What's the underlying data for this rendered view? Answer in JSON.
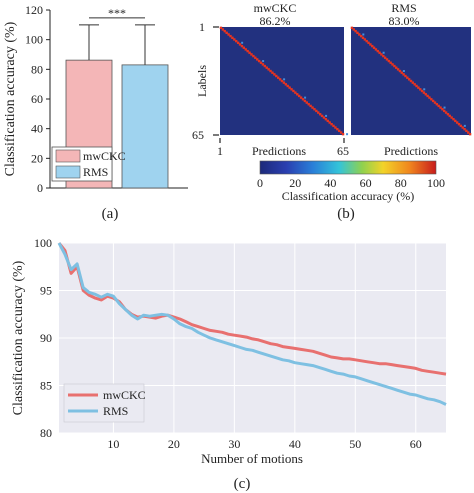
{
  "colors": {
    "mwckc_fill": "#f4b6b7",
    "rms_fill": "#9fd3ef",
    "mwckc_line": "#e8706f",
    "rms_line": "#7ec0e2",
    "heatmap_bg": "#22317f",
    "heatmap_diag": "#e8331e"
  },
  "panels": {
    "a_label": "(a)",
    "b_label": "(b)",
    "c_label": "(c)"
  },
  "chart_data": [
    {
      "type": "bar",
      "panel": "a",
      "categories": [
        "mwCKC",
        "RMS"
      ],
      "values": [
        86.2,
        83.0
      ],
      "error_upper": [
        110,
        110
      ],
      "ylabel": "Classification accuracy (%)",
      "ylim": [
        0,
        120
      ],
      "yticks": [
        "0",
        "20",
        "40",
        "60",
        "80",
        "100",
        "120"
      ],
      "significance": "***",
      "legend": [
        "mwCKC",
        "RMS"
      ],
      "legend_position": "bottom-left"
    },
    {
      "type": "heatmap",
      "panel": "b",
      "maps": [
        {
          "name": "mwCKC",
          "accuracy": "86.2%"
        },
        {
          "name": "RMS",
          "accuracy": "83.0%"
        }
      ],
      "ylabel": "Labels",
      "xlabel": "Predictions",
      "y_ticks": [
        "1",
        "65"
      ],
      "x_ticks": [
        "1",
        "65"
      ],
      "colorbar": {
        "label": "Classification accuracy (%)",
        "ticks": [
          "0",
          "20",
          "40",
          "60",
          "80",
          "100"
        ],
        "range": [
          0,
          100
        ]
      }
    },
    {
      "type": "line",
      "panel": "c",
      "xlabel": "Number of motions",
      "ylabel": "Classification accuracy (%)",
      "xlim": [
        1,
        65
      ],
      "ylim": [
        80,
        100
      ],
      "xticks": [
        "10",
        "20",
        "30",
        "40",
        "50",
        "60"
      ],
      "yticks": [
        "80",
        "85",
        "90",
        "95",
        "100"
      ],
      "legend_position": "bottom-left",
      "series": [
        {
          "name": "mwCKC",
          "points": [
            [
              1,
              100
            ],
            [
              2,
              99.2
            ],
            [
              3,
              96.8
            ],
            [
              4,
              97.5
            ],
            [
              5,
              95
            ],
            [
              6,
              94.5
            ],
            [
              7,
              94.2
            ],
            [
              8,
              94
            ],
            [
              9,
              94.4
            ],
            [
              10,
              94.2
            ],
            [
              11,
              93.8
            ],
            [
              12,
              93
            ],
            [
              13,
              92.5
            ],
            [
              14,
              92.2
            ],
            [
              15,
              92.3
            ],
            [
              16,
              92.2
            ],
            [
              17,
              92.1
            ],
            [
              18,
              92.3
            ],
            [
              19,
              92.4
            ],
            [
              20,
              92.2
            ],
            [
              21,
              92
            ],
            [
              22,
              91.7
            ],
            [
              23,
              91.4
            ],
            [
              24,
              91.2
            ],
            [
              25,
              91
            ],
            [
              26,
              90.8
            ],
            [
              27,
              90.7
            ],
            [
              28,
              90.6
            ],
            [
              29,
              90.4
            ],
            [
              30,
              90.3
            ],
            [
              31,
              90.2
            ],
            [
              32,
              90.1
            ],
            [
              33,
              89.9
            ],
            [
              34,
              89.8
            ],
            [
              35,
              89.6
            ],
            [
              36,
              89.4
            ],
            [
              37,
              89.3
            ],
            [
              38,
              89.1
            ],
            [
              39,
              89
            ],
            [
              40,
              88.9
            ],
            [
              41,
              88.8
            ],
            [
              42,
              88.7
            ],
            [
              43,
              88.6
            ],
            [
              44,
              88.4
            ],
            [
              45,
              88.2
            ],
            [
              46,
              88
            ],
            [
              47,
              87.9
            ],
            [
              48,
              87.8
            ],
            [
              49,
              87.8
            ],
            [
              50,
              87.7
            ],
            [
              51,
              87.6
            ],
            [
              52,
              87.5
            ],
            [
              53,
              87.4
            ],
            [
              54,
              87.3
            ],
            [
              55,
              87.3
            ],
            [
              56,
              87.2
            ],
            [
              57,
              87.1
            ],
            [
              58,
              87
            ],
            [
              59,
              86.9
            ],
            [
              60,
              86.8
            ],
            [
              61,
              86.6
            ],
            [
              62,
              86.5
            ],
            [
              63,
              86.4
            ],
            [
              64,
              86.3
            ],
            [
              65,
              86.2
            ]
          ]
        },
        {
          "name": "RMS",
          "points": [
            [
              1,
              100
            ],
            [
              2,
              98.8
            ],
            [
              3,
              97.2
            ],
            [
              4,
              97.8
            ],
            [
              5,
              95.3
            ],
            [
              6,
              94.8
            ],
            [
              7,
              94.6
            ],
            [
              8,
              94.3
            ],
            [
              9,
              94.6
            ],
            [
              10,
              94.4
            ],
            [
              11,
              93.6
            ],
            [
              12,
              93
            ],
            [
              13,
              92.4
            ],
            [
              14,
              92
            ],
            [
              15,
              92.4
            ],
            [
              16,
              92.3
            ],
            [
              17,
              92.4
            ],
            [
              18,
              92.5
            ],
            [
              19,
              92.4
            ],
            [
              20,
              92
            ],
            [
              21,
              91.5
            ],
            [
              22,
              91.2
            ],
            [
              23,
              91
            ],
            [
              24,
              90.6
            ],
            [
              25,
              90.3
            ],
            [
              26,
              90
            ],
            [
              27,
              89.8
            ],
            [
              28,
              89.6
            ],
            [
              29,
              89.4
            ],
            [
              30,
              89.2
            ],
            [
              31,
              89
            ],
            [
              32,
              88.8
            ],
            [
              33,
              88.7
            ],
            [
              34,
              88.5
            ],
            [
              35,
              88.3
            ],
            [
              36,
              88.1
            ],
            [
              37,
              87.9
            ],
            [
              38,
              87.7
            ],
            [
              39,
              87.6
            ],
            [
              40,
              87.4
            ],
            [
              41,
              87.3
            ],
            [
              42,
              87.2
            ],
            [
              43,
              87.1
            ],
            [
              44,
              86.9
            ],
            [
              45,
              86.7
            ],
            [
              46,
              86.5
            ],
            [
              47,
              86.3
            ],
            [
              48,
              86.2
            ],
            [
              49,
              86
            ],
            [
              50,
              85.9
            ],
            [
              51,
              85.7
            ],
            [
              52,
              85.5
            ],
            [
              53,
              85.3
            ],
            [
              54,
              85.1
            ],
            [
              55,
              84.9
            ],
            [
              56,
              84.7
            ],
            [
              57,
              84.5
            ],
            [
              58,
              84.3
            ],
            [
              59,
              84.1
            ],
            [
              60,
              84
            ],
            [
              61,
              83.8
            ],
            [
              62,
              83.6
            ],
            [
              63,
              83.5
            ],
            [
              64,
              83.3
            ],
            [
              65,
              83.0
            ]
          ]
        }
      ]
    }
  ]
}
